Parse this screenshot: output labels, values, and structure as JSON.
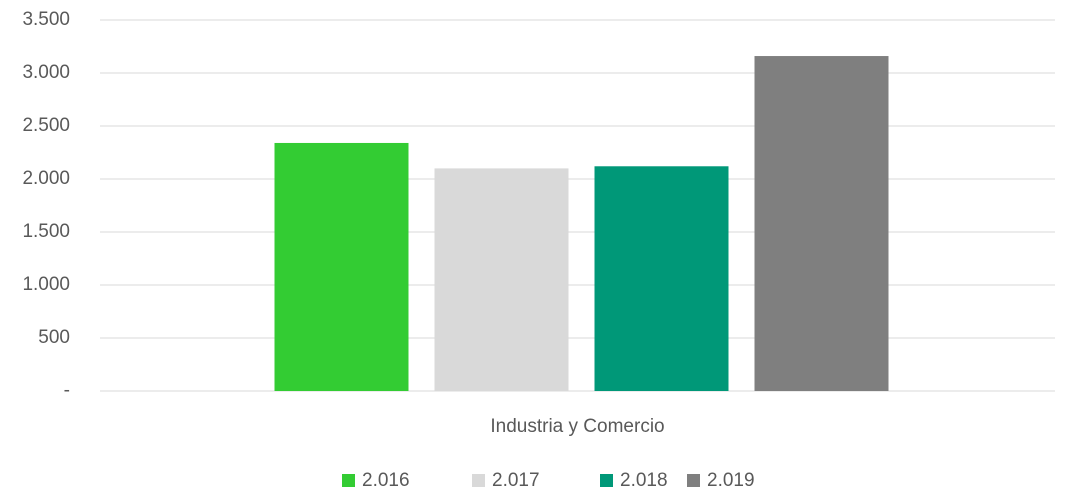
{
  "chart_data": {
    "type": "bar",
    "categories": [
      "Industria y Comercio"
    ],
    "series": [
      {
        "name": "2.016",
        "color": "#33cc33",
        "values": [
          2340
        ]
      },
      {
        "name": "2.017",
        "color": "#d9d9d9",
        "values": [
          2100
        ]
      },
      {
        "name": "2.018",
        "color": "#009878",
        "values": [
          2120
        ]
      },
      {
        "name": "2.019",
        "color": "#7f7f7f",
        "values": [
          3160
        ]
      }
    ],
    "ylim": [
      0,
      3500
    ],
    "yticks": [
      {
        "value": 0,
        "label": "-"
      },
      500,
      {
        "value": 1000,
        "label": "1.000"
      },
      {
        "value": 1500,
        "label": "1.500"
      },
      {
        "value": 2000,
        "label": "2.000"
      },
      {
        "value": 2500,
        "label": "2.500"
      },
      {
        "value": 3000,
        "label": "3.000"
      },
      {
        "value": 3500,
        "label": "3.500"
      }
    ],
    "grid": true,
    "legend": "bottom"
  }
}
